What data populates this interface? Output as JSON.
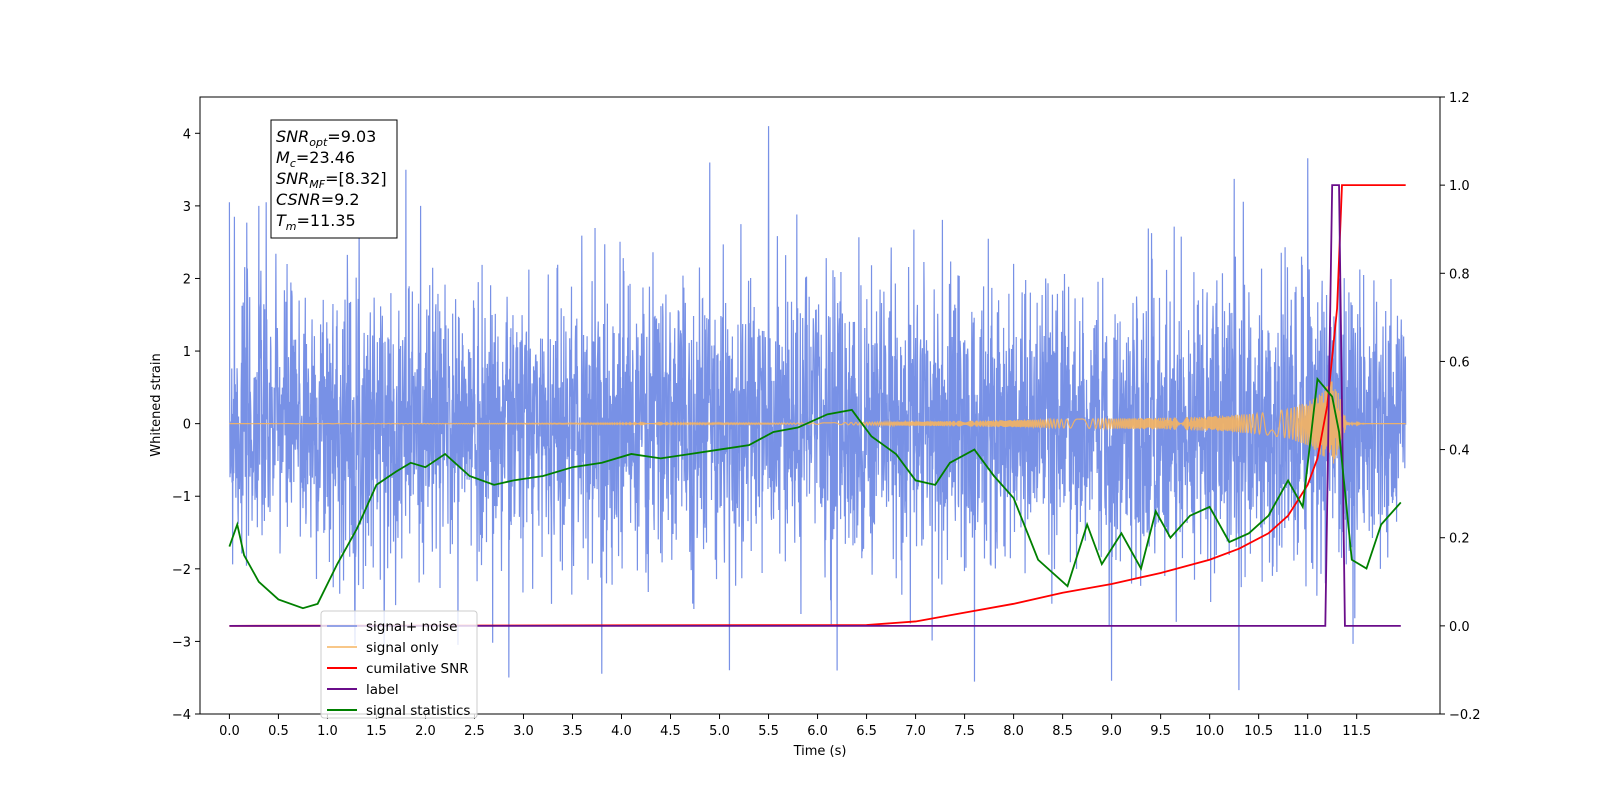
{
  "chart_data": {
    "type": "line",
    "xlabel": "Time (s)",
    "ylabel": "Whitened strain",
    "xlim": [
      -0.3,
      12.35
    ],
    "ylim": [
      -4,
      4.5
    ],
    "y2lim": [
      -0.2,
      1.2
    ],
    "x_ticks": [
      "0.0",
      "0.5",
      "1.0",
      "1.5",
      "2.0",
      "2.5",
      "3.0",
      "3.5",
      "4.0",
      "4.5",
      "5.0",
      "5.5",
      "6.0",
      "6.5",
      "7.0",
      "7.5",
      "8.0",
      "8.5",
      "9.0",
      "9.5",
      "10.0",
      "10.5",
      "11.0",
      "11.5"
    ],
    "y_ticks": [
      "−4",
      "−3",
      "−2",
      "−1",
      "0",
      "1",
      "2",
      "3",
      "4"
    ],
    "y2_ticks": [
      "−0.2",
      "0.0",
      "0.2",
      "0.4",
      "0.6",
      "0.8",
      "1.0",
      "1.2"
    ],
    "legend_position": "lower-left",
    "annotation": [
      {
        "main": "SNR",
        "sub": "opt",
        "value": "=9.03"
      },
      {
        "main": "M",
        "sub": "c",
        "value": "=23.46"
      },
      {
        "main": "SNR",
        "sub": "MF",
        "value": "=[8.32]"
      },
      {
        "main": "CSNR",
        "sub": "",
        "value": "=9.2"
      },
      {
        "main": "T",
        "sub": "m",
        "value": "=11.35"
      }
    ],
    "series": [
      {
        "name": "signal+ noise",
        "axis": "left",
        "color": "#7891e6",
        "x_range": [
          0.0,
          12.0
        ],
        "envelope_low": -2.3,
        "envelope_high": 2.3,
        "extreme_peaks": [
          [
            0.05,
            2.85
          ],
          [
            0.3,
            3.0
          ],
          [
            1.8,
            3.5
          ],
          [
            2.85,
            -3.5
          ],
          [
            4.9,
            3.6
          ],
          [
            5.5,
            4.1
          ],
          [
            5.1,
            -3.4
          ],
          [
            7.6,
            3.55
          ],
          [
            7.6,
            -3.55
          ],
          [
            9.0,
            -3.6
          ],
          [
            10.3,
            -3.55
          ],
          [
            10.25,
            3.3
          ],
          [
            11.0,
            3.95
          ],
          [
            3.8,
            -3.45
          ],
          [
            6.2,
            -3.4
          ]
        ]
      },
      {
        "name": "signal only",
        "axis": "left",
        "color": "#f5b460",
        "x": [
          0.0,
          6.0,
          7.5,
          8.5,
          9.5,
          10.0,
          10.5,
          10.8,
          11.0,
          11.15,
          11.25,
          11.32,
          11.4,
          11.6,
          12.0
        ],
        "amplitude": [
          0.0,
          0.01,
          0.04,
          0.06,
          0.08,
          0.1,
          0.14,
          0.2,
          0.3,
          0.45,
          0.6,
          0.4,
          0.02,
          0.0,
          0.0
        ]
      },
      {
        "name": "cumilative SNR",
        "axis": "right",
        "color": "#ff0000",
        "x": [
          0.0,
          6.5,
          7.0,
          7.5,
          8.0,
          8.5,
          9.0,
          9.5,
          10.0,
          10.3,
          10.6,
          10.8,
          11.0,
          11.1,
          11.2,
          11.3,
          11.35,
          11.45,
          12.0
        ],
        "values": [
          0.0,
          0.002,
          0.01,
          0.03,
          0.05,
          0.075,
          0.095,
          0.12,
          0.15,
          0.175,
          0.21,
          0.25,
          0.32,
          0.38,
          0.5,
          0.72,
          1.0,
          1.0,
          1.0
        ]
      },
      {
        "name": "label",
        "axis": "right",
        "color": "#6a0d8a",
        "x": [
          0.0,
          11.18,
          11.25,
          11.32,
          11.38,
          11.95
        ],
        "values": [
          0.0,
          0.0,
          1.0,
          1.0,
          0.0,
          0.0
        ]
      },
      {
        "name": "signal statistics",
        "axis": "right",
        "color": "#008000",
        "x": [
          0.0,
          0.08,
          0.15,
          0.3,
          0.5,
          0.75,
          0.9,
          1.1,
          1.3,
          1.5,
          1.7,
          1.85,
          2.0,
          2.2,
          2.45,
          2.7,
          2.9,
          3.2,
          3.5,
          3.8,
          4.1,
          4.4,
          4.7,
          5.0,
          5.3,
          5.55,
          5.8,
          6.1,
          6.35,
          6.55,
          6.8,
          7.0,
          7.2,
          7.35,
          7.6,
          7.8,
          8.0,
          8.25,
          8.55,
          8.75,
          8.9,
          9.1,
          9.3,
          9.45,
          9.6,
          9.8,
          10.0,
          10.2,
          10.4,
          10.6,
          10.8,
          10.95,
          11.1,
          11.25,
          11.32,
          11.45,
          11.6,
          11.75,
          11.95
        ],
        "values": [
          0.18,
          0.23,
          0.16,
          0.1,
          0.06,
          0.04,
          0.05,
          0.14,
          0.22,
          0.32,
          0.35,
          0.37,
          0.36,
          0.39,
          0.34,
          0.32,
          0.33,
          0.34,
          0.36,
          0.37,
          0.39,
          0.38,
          0.39,
          0.4,
          0.41,
          0.44,
          0.45,
          0.48,
          0.49,
          0.43,
          0.39,
          0.33,
          0.32,
          0.37,
          0.4,
          0.34,
          0.29,
          0.15,
          0.09,
          0.23,
          0.14,
          0.21,
          0.13,
          0.26,
          0.2,
          0.25,
          0.27,
          0.19,
          0.21,
          0.25,
          0.33,
          0.27,
          0.56,
          0.52,
          0.44,
          0.15,
          0.13,
          0.23,
          0.28
        ]
      }
    ]
  }
}
